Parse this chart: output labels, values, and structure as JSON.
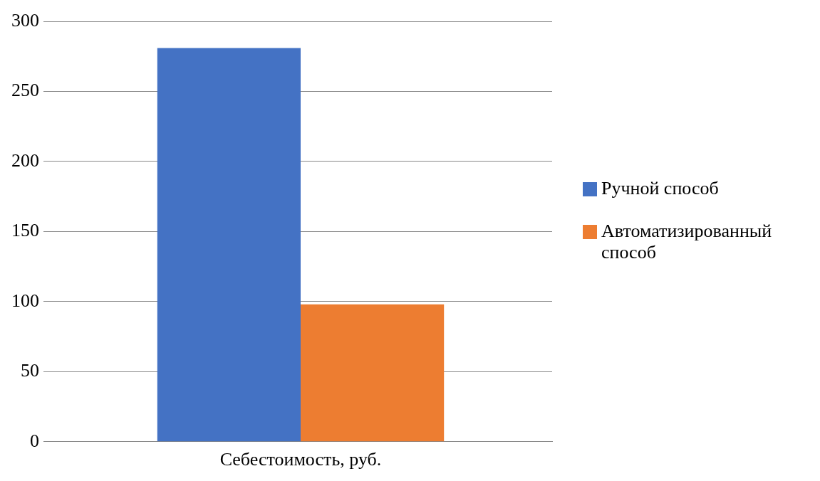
{
  "chart_data": {
    "type": "bar",
    "categories": [
      "Себестоимость, руб."
    ],
    "series": [
      {
        "name": "Ручной способ",
        "color": "#4472c4",
        "values": [
          281
        ]
      },
      {
        "name": "Автоматизированный способ",
        "color": "#ed7d31",
        "values": [
          98
        ]
      }
    ],
    "ylim": [
      0,
      300
    ],
    "yticks": [
      0,
      50,
      100,
      150,
      200,
      250,
      300
    ],
    "grid": "y",
    "legend": "right"
  }
}
